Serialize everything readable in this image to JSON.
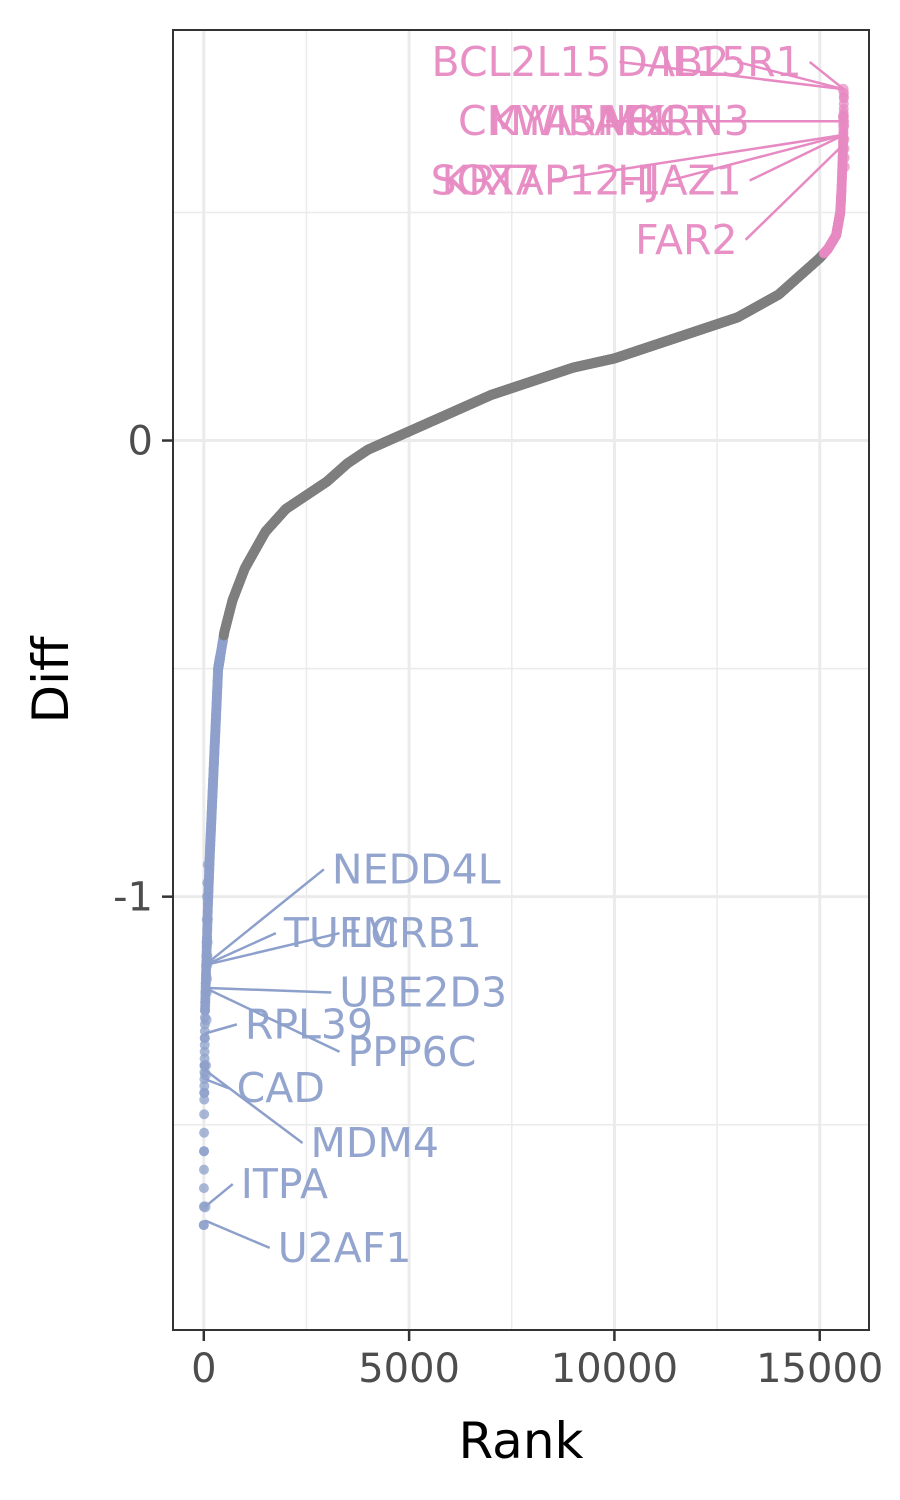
{
  "chart_data": {
    "type": "scatter",
    "title": "",
    "xlabel": "Rank",
    "ylabel": "Diff",
    "xlim": [
      -750,
      16200
    ],
    "ylim": [
      -1.95,
      0.9
    ],
    "x_ticks": [
      0,
      5000,
      10000,
      15000
    ],
    "y_ticks": [
      -1,
      0
    ],
    "grid": true,
    "legend": "none",
    "colors": {
      "up": "#e78ac3",
      "down": "#8da0cb",
      "neutral": "#7f7f7f"
    },
    "curve": [
      {
        "rank": 0,
        "diff": -1.72
      },
      {
        "rank": 10,
        "diff": -1.45
      },
      {
        "rank": 30,
        "diff": -1.25
      },
      {
        "rank": 60,
        "diff": -1.15
      },
      {
        "rank": 100,
        "diff": -1.02
      },
      {
        "rank": 150,
        "diff": -0.9
      },
      {
        "rank": 250,
        "diff": -0.7
      },
      {
        "rank": 350,
        "diff": -0.5
      },
      {
        "rank": 500,
        "diff": -0.42
      },
      {
        "rank": 700,
        "diff": -0.35
      },
      {
        "rank": 1000,
        "diff": -0.28
      },
      {
        "rank": 1500,
        "diff": -0.2
      },
      {
        "rank": 2000,
        "diff": -0.15
      },
      {
        "rank": 2500,
        "diff": -0.12
      },
      {
        "rank": 3000,
        "diff": -0.09
      },
      {
        "rank": 3500,
        "diff": -0.05
      },
      {
        "rank": 4000,
        "diff": -0.02
      },
      {
        "rank": 5000,
        "diff": 0.02
      },
      {
        "rank": 6000,
        "diff": 0.06
      },
      {
        "rank": 7000,
        "diff": 0.1
      },
      {
        "rank": 8000,
        "diff": 0.13
      },
      {
        "rank": 9000,
        "diff": 0.16
      },
      {
        "rank": 10000,
        "diff": 0.18
      },
      {
        "rank": 11000,
        "diff": 0.21
      },
      {
        "rank": 12000,
        "diff": 0.24
      },
      {
        "rank": 13000,
        "diff": 0.27
      },
      {
        "rank": 14000,
        "diff": 0.32
      },
      {
        "rank": 14500,
        "diff": 0.36
      },
      {
        "rank": 15000,
        "diff": 0.4
      },
      {
        "rank": 15200,
        "diff": 0.42
      },
      {
        "rank": 15400,
        "diff": 0.45
      },
      {
        "rank": 15500,
        "diff": 0.5
      },
      {
        "rank": 15530,
        "diff": 0.55
      },
      {
        "rank": 15550,
        "diff": 0.6
      },
      {
        "rank": 15565,
        "diff": 0.64
      },
      {
        "rank": 15575,
        "diff": 0.67
      },
      {
        "rank": 15580,
        "diff": 0.7
      },
      {
        "rank": 15585,
        "diff": 0.73
      },
      {
        "rank": 15590,
        "diff": 0.77
      }
    ],
    "down_threshold": -0.43,
    "up_threshold": 0.41,
    "extra_points": [
      {
        "rank": 30,
        "diff": -1.68,
        "group": "down"
      },
      {
        "rank": 40,
        "diff": -1.37,
        "group": "down"
      },
      {
        "rank": 45,
        "diff": -1.39,
        "group": "down"
      },
      {
        "rank": 55,
        "diff": -1.27,
        "group": "down"
      },
      {
        "rank": 60,
        "diff": -1.21,
        "group": "down"
      },
      {
        "rank": 65,
        "diff": -1.18,
        "group": "down"
      },
      {
        "rank": 70,
        "diff": -1.15,
        "group": "down"
      },
      {
        "rank": 75,
        "diff": -1.13,
        "group": "down"
      },
      {
        "rank": 80,
        "diff": -1.1,
        "group": "down"
      },
      {
        "rank": 85,
        "diff": -1.05,
        "group": "down"
      },
      {
        "rank": 90,
        "diff": -1.0,
        "group": "down"
      },
      {
        "rank": 95,
        "diff": -0.97,
        "group": "down"
      },
      {
        "rank": 110,
        "diff": -0.93,
        "group": "down"
      },
      {
        "rank": 15570,
        "diff": 0.77,
        "group": "up"
      },
      {
        "rank": 15575,
        "diff": 0.71,
        "group": "up"
      },
      {
        "rank": 15580,
        "diff": 0.7,
        "group": "up"
      },
      {
        "rank": 15585,
        "diff": 0.69,
        "group": "up"
      },
      {
        "rank": 15590,
        "diff": 0.66,
        "group": "up"
      },
      {
        "rank": 15592,
        "diff": 0.64,
        "group": "up"
      },
      {
        "rank": 15595,
        "diff": 0.62,
        "group": "up"
      },
      {
        "rank": 15598,
        "diff": 0.6,
        "group": "up"
      }
    ],
    "labels": [
      {
        "text": "BCL2L15",
        "group": "up",
        "point": {
          "rank": 15590,
          "diff": 0.77
        },
        "anchor": {
          "rank": 9930,
          "diff": 0.83
        }
      },
      {
        "text": "DAB2",
        "group": "up",
        "point": {
          "rank": 15590,
          "diff": 0.77
        },
        "anchor": {
          "rank": 12800,
          "diff": 0.83
        }
      },
      {
        "text": "IL15R1",
        "group": "up",
        "point": {
          "rank": 15590,
          "diff": 0.77
        },
        "anchor": {
          "rank": 14560,
          "diff": 0.83
        }
      },
      {
        "text": "CMYA5",
        "group": "up",
        "point": {
          "rank": 15590,
          "diff": 0.7
        },
        "anchor": {
          "rank": 9600,
          "diff": 0.7
        }
      },
      {
        "text": "KWIRAF1",
        "group": "up",
        "point": {
          "rank": 15590,
          "diff": 0.7
        },
        "anchor": {
          "rank": 11400,
          "diff": 0.7
        }
      },
      {
        "text": "NOCT",
        "group": "up",
        "point": {
          "rank": 15590,
          "diff": 0.7
        },
        "anchor": {
          "rank": 12400,
          "diff": 0.7
        }
      },
      {
        "text": "MKRN3",
        "group": "up",
        "point": {
          "rank": 15590,
          "diff": 0.7
        },
        "anchor": {
          "rank": 13300,
          "diff": 0.7
        }
      },
      {
        "text": "SOX7",
        "group": "up",
        "point": {
          "rank": 15590,
          "diff": 0.67
        },
        "anchor": {
          "rank": 8200,
          "diff": 0.57
        }
      },
      {
        "text": "KRTAP12-1",
        "group": "up",
        "point": {
          "rank": 15590,
          "diff": 0.67
        },
        "anchor": {
          "rank": 11150,
          "diff": 0.57
        }
      },
      {
        "text": "HJAZ1",
        "group": "up",
        "point": {
          "rank": 15590,
          "diff": 0.67
        },
        "anchor": {
          "rank": 13100,
          "diff": 0.57
        }
      },
      {
        "text": "FAR2",
        "group": "up",
        "point": {
          "rank": 15590,
          "diff": 0.65
        },
        "anchor": {
          "rank": 13000,
          "diff": 0.44
        }
      },
      {
        "text": "NEDD4L",
        "group": "down",
        "point": {
          "rank": 30,
          "diff": -1.15
        },
        "anchor": {
          "rank": 3120,
          "diff": -0.94
        }
      },
      {
        "text": "TUFM",
        "group": "down",
        "point": {
          "rank": 30,
          "diff": -1.15
        },
        "anchor": {
          "rank": 1950,
          "diff": -1.08
        }
      },
      {
        "text": "LCRB1",
        "group": "down",
        "point": {
          "rank": 30,
          "diff": -1.15
        },
        "anchor": {
          "rank": 3500,
          "diff": -1.08
        }
      },
      {
        "text": "UBE2D3",
        "group": "down",
        "point": {
          "rank": 30,
          "diff": -1.2
        },
        "anchor": {
          "rank": 3300,
          "diff": -1.21
        }
      },
      {
        "text": "RPL39",
        "group": "down",
        "point": {
          "rank": 30,
          "diff": -1.3
        },
        "anchor": {
          "rank": 1000,
          "diff": -1.28
        }
      },
      {
        "text": "PPP6C",
        "group": "down",
        "point": {
          "rank": 30,
          "diff": -1.2
        },
        "anchor": {
          "rank": 3500,
          "diff": -1.34
        }
      },
      {
        "text": "CAD",
        "group": "down",
        "point": {
          "rank": 30,
          "diff": -1.4
        },
        "anchor": {
          "rank": 800,
          "diff": -1.42
        }
      },
      {
        "text": "MDM4",
        "group": "down",
        "point": {
          "rank": 30,
          "diff": -1.38
        },
        "anchor": {
          "rank": 2600,
          "diff": -1.54
        }
      },
      {
        "text": "ITPA",
        "group": "down",
        "point": {
          "rank": 30,
          "diff": -1.68
        },
        "anchor": {
          "rank": 900,
          "diff": -1.63
        }
      },
      {
        "text": "U2AF1",
        "group": "down",
        "point": {
          "rank": 30,
          "diff": -1.71
        },
        "anchor": {
          "rank": 1800,
          "diff": -1.77
        }
      }
    ]
  }
}
